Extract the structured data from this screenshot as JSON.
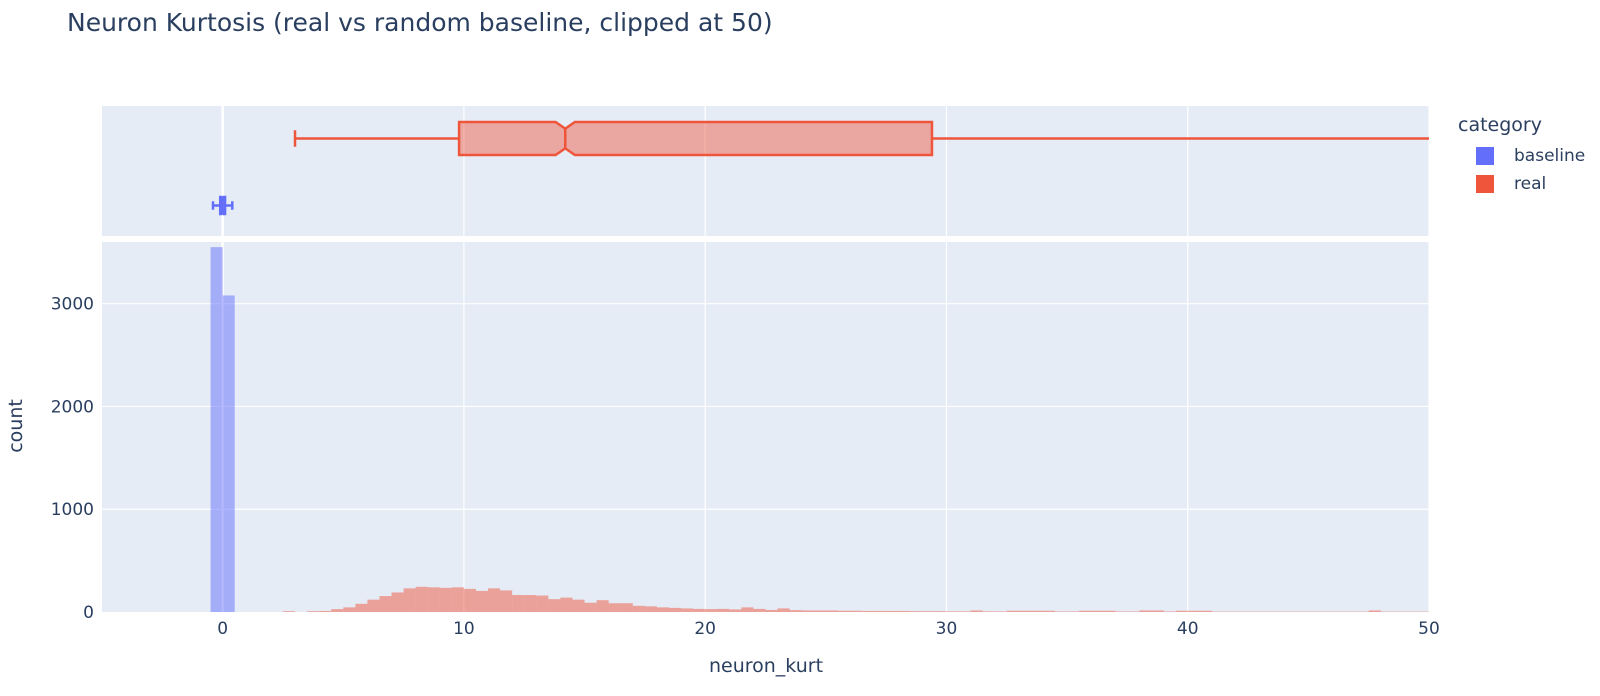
{
  "chart_title": "Neuron Kurtosis (real vs random baseline, clipped at 50)",
  "legend": {
    "title": "category",
    "items": [
      {
        "label": "baseline",
        "color": "#636efa"
      },
      {
        "label": "real",
        "color": "#ef553b"
      }
    ]
  },
  "chart_data": {
    "type": "histogram",
    "title": "Neuron Kurtosis (real vs random baseline, clipped at 50)",
    "xlabel": "neuron_kurt",
    "ylabel": "count",
    "xlim": [
      -5,
      50
    ],
    "ylim": [
      0,
      3600
    ],
    "x_ticks": [
      0,
      10,
      20,
      30,
      40,
      50
    ],
    "x_tick_labels": [
      "0",
      "10",
      "20",
      "30",
      "40",
      "50"
    ],
    "y_ticks": [
      0,
      1000,
      2000,
      3000
    ],
    "y_tick_labels": [
      "0",
      "1000",
      "2000",
      "3000"
    ],
    "bin_width": 0.5,
    "grid": true,
    "legend_position": "right",
    "series": [
      {
        "name": "baseline",
        "color": "#636efa",
        "bin_starts": [
          -0.5,
          0
        ],
        "counts": [
          3550,
          3080
        ]
      },
      {
        "name": "real",
        "color": "#ef553b",
        "bin_starts": [
          2.5,
          3.5,
          4,
          4.5,
          5,
          5.5,
          6,
          6.5,
          7,
          7.5,
          8,
          8.5,
          9,
          9.5,
          10,
          10.5,
          11,
          11.5,
          12,
          12.5,
          13,
          13.5,
          14,
          14.5,
          15,
          15.5,
          16,
          16.5,
          17,
          17.5,
          18,
          18.5,
          19,
          19.5,
          20,
          20.5,
          21,
          21.5,
          22,
          22.5,
          23,
          23.5,
          24,
          24.5,
          25,
          25.5,
          26,
          26.5,
          27,
          27.5,
          28,
          28.5,
          29,
          29.5,
          30,
          30.5,
          31,
          31.5,
          32,
          32.5,
          33,
          33.5,
          34,
          34.5,
          35,
          35.5,
          36,
          36.5,
          37,
          37.5,
          38,
          38.5,
          39,
          39.5,
          40,
          40.5,
          41,
          41.5,
          42,
          42.5,
          43,
          43.5,
          44,
          44.5,
          45,
          45.5,
          46,
          46.5,
          47,
          47.5,
          48,
          48.5,
          49,
          49.5
        ],
        "counts": [
          8,
          8,
          10,
          28,
          45,
          80,
          120,
          155,
          190,
          230,
          245,
          240,
          235,
          240,
          225,
          205,
          230,
          210,
          165,
          165,
          160,
          125,
          140,
          120,
          90,
          115,
          85,
          85,
          60,
          55,
          45,
          40,
          35,
          30,
          28,
          30,
          25,
          45,
          30,
          20,
          35,
          18,
          15,
          15,
          15,
          12,
          12,
          10,
          10,
          10,
          10,
          8,
          8,
          8,
          6,
          6,
          15,
          6,
          5,
          12,
          12,
          12,
          12,
          5,
          5,
          12,
          12,
          12,
          5,
          5,
          15,
          15,
          5,
          12,
          12,
          12,
          4,
          4,
          4,
          4,
          4,
          4,
          4,
          4,
          4,
          4,
          4,
          4,
          4,
          15,
          4,
          4,
          4,
          4
        ]
      }
    ],
    "box_plots": [
      {
        "name": "real",
        "color": "#ef553b",
        "notched": true,
        "lower_whisker": 3,
        "q1": 9.8,
        "median": 14.2,
        "q3": 29.4,
        "upper_whisker": 50,
        "notch_low": 13.8,
        "notch_high": 14.6
      },
      {
        "name": "baseline",
        "color": "#636efa",
        "notched": true,
        "lower_whisker": -0.4,
        "q1": -0.1,
        "median": 0,
        "q3": 0.1,
        "upper_whisker": 0.4,
        "notch_low": -0.05,
        "notch_high": 0.05
      }
    ]
  }
}
